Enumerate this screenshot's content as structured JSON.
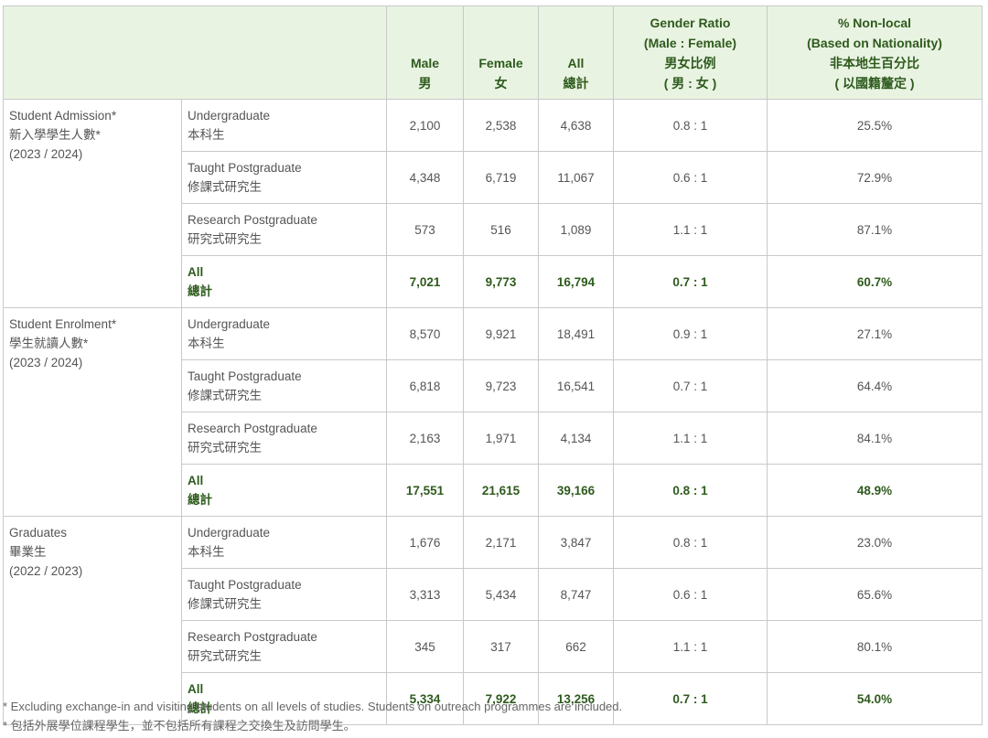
{
  "header": {
    "male": [
      "Male",
      "男"
    ],
    "female": [
      "Female",
      "女"
    ],
    "all": [
      "All",
      "總計"
    ],
    "ratio": [
      "Gender Ratio",
      "(Male : Female)",
      "男女比例",
      "( 男 : 女 )"
    ],
    "nonlocal": [
      "% Non-local",
      "(Based on Nationality)",
      "非本地生百分比",
      "( 以國籍釐定 )"
    ]
  },
  "groups": [
    {
      "label": [
        "Student Admission*",
        "新入學學生人數*",
        "(2023 / 2024)"
      ],
      "rows": [
        {
          "level": [
            "Undergraduate",
            "本科生"
          ],
          "male": "2,100",
          "female": "2,538",
          "all": "4,638",
          "ratio": "0.8 : 1",
          "nonlocal": "25.5%"
        },
        {
          "level": [
            "Taught Postgraduate",
            "修課式研究生"
          ],
          "male": "4,348",
          "female": "6,719",
          "all": "11,067",
          "ratio": "0.6 : 1",
          "nonlocal": "72.9%"
        },
        {
          "level": [
            "Research Postgraduate",
            "研究式研究生"
          ],
          "male": "573",
          "female": "516",
          "all": "1,089",
          "ratio": "1.1 : 1",
          "nonlocal": "87.1%"
        },
        {
          "level": [
            "All",
            "總計"
          ],
          "male": "7,021",
          "female": "9,773",
          "all": "16,794",
          "ratio": "0.7 : 1",
          "nonlocal": "60.7%",
          "total": true
        }
      ]
    },
    {
      "label": [
        "Student Enrolment*",
        "學生就讀人數*",
        "(2023 / 2024)"
      ],
      "rows": [
        {
          "level": [
            "Undergraduate",
            "本科生"
          ],
          "male": "8,570",
          "female": "9,921",
          "all": "18,491",
          "ratio": "0.9 : 1",
          "nonlocal": "27.1%"
        },
        {
          "level": [
            "Taught Postgraduate",
            "修課式研究生"
          ],
          "male": "6,818",
          "female": "9,723",
          "all": "16,541",
          "ratio": "0.7 : 1",
          "nonlocal": "64.4%"
        },
        {
          "level": [
            "Research Postgraduate",
            "研究式研究生"
          ],
          "male": "2,163",
          "female": "1,971",
          "all": "4,134",
          "ratio": "1.1 : 1",
          "nonlocal": "84.1%"
        },
        {
          "level": [
            "All",
            "總計"
          ],
          "male": "17,551",
          "female": "21,615",
          "all": "39,166",
          "ratio": "0.8 : 1",
          "nonlocal": "48.9%",
          "total": true
        }
      ]
    },
    {
      "label": [
        "Graduates",
        "畢業生",
        "(2022 / 2023)"
      ],
      "rows": [
        {
          "level": [
            "Undergraduate",
            "本科生"
          ],
          "male": "1,676",
          "female": "2,171",
          "all": "3,847",
          "ratio": "0.8 : 1",
          "nonlocal": "23.0%"
        },
        {
          "level": [
            "Taught Postgraduate",
            "修課式研究生"
          ],
          "male": "3,313",
          "female": "5,434",
          "all": "8,747",
          "ratio": "0.6 : 1",
          "nonlocal": "65.6%"
        },
        {
          "level": [
            "Research Postgraduate",
            "研究式研究生"
          ],
          "male": "345",
          "female": "317",
          "all": "662",
          "ratio": "1.1 : 1",
          "nonlocal": "80.1%"
        },
        {
          "level": [
            "All",
            "總計"
          ],
          "male": "5,334",
          "female": "7,922",
          "all": "13,256",
          "ratio": "0.7 : 1",
          "nonlocal": "54.0%",
          "total": true
        }
      ]
    }
  ],
  "footnotes": [
    "* Excluding exchange-in and visiting students on all levels of studies. Students on outreach programmes are included.",
    "* 包括外展學位課程學生，並不包括所有課程之交換生及訪問學生。"
  ]
}
